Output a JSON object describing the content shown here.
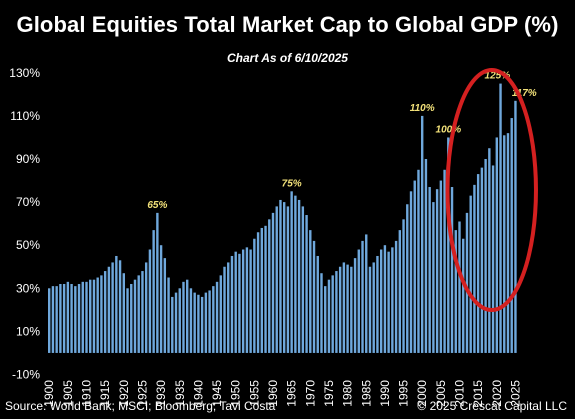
{
  "header": {
    "title": "Global Equities Total Market Cap to Global GDP (%)",
    "subtitle": "Chart As of 6/10/2025"
  },
  "footer": {
    "source": "Source: World Bank; MSCI; Bloomberg; Tavi Costa",
    "copyright": "© 2025 Crescat Capital LLC"
  },
  "colors": {
    "background": "#000000",
    "bar": "#6fa8dc",
    "annotation": "#f3e27a",
    "highlight_ellipse": "#d42020"
  },
  "chart_data": {
    "type": "bar",
    "title": "Global Equities Total Market Cap to Global GDP (%)",
    "subtitle": "Chart As of 6/10/2025",
    "xlabel": "",
    "ylabel": "",
    "ylim": [
      -10,
      130
    ],
    "yticks": [
      -10,
      10,
      30,
      50,
      70,
      90,
      110,
      130
    ],
    "ytick_labels": [
      "-10%",
      "10%",
      "30%",
      "50%",
      "70%",
      "90%",
      "110%",
      "130%"
    ],
    "xticks": [
      1900,
      1905,
      1910,
      1915,
      1920,
      1925,
      1930,
      1935,
      1940,
      1945,
      1950,
      1955,
      1960,
      1965,
      1970,
      1975,
      1980,
      1985,
      1990,
      1995,
      2000,
      2005,
      2010,
      2015,
      2020,
      2025
    ],
    "grid": false,
    "legend": "none",
    "annotations": [
      {
        "x": 1929,
        "label": "65%"
      },
      {
        "x": 1965,
        "label": "75%"
      },
      {
        "x": 2000,
        "label": "110%"
      },
      {
        "x": 2007,
        "label": "100%"
      },
      {
        "x": 2021,
        "label": "125%"
      },
      {
        "x": 2025,
        "label": "117%"
      }
    ],
    "highlight": {
      "shape": "ellipse",
      "x_range": [
        2013,
        2026
      ],
      "description_color": "#d42020"
    },
    "x": [
      1900.0,
      1901.0,
      1902.0,
      1903.0,
      1904.0,
      1905.0,
      1906.0,
      1907.0,
      1908.0,
      1909.0,
      1910.0,
      1911.0,
      1912.0,
      1913.0,
      1914.0,
      1915.0,
      1916.0,
      1917.0,
      1918.0,
      1919.0,
      1920.0,
      1921.0,
      1922.0,
      1923.0,
      1924.0,
      1925.0,
      1926.0,
      1927.0,
      1928.0,
      1929.0,
      1930.0,
      1931.0,
      1932.0,
      1933.0,
      1934.0,
      1935.0,
      1936.0,
      1937.0,
      1938.0,
      1939.0,
      1940.0,
      1941.0,
      1942.0,
      1943.0,
      1944.0,
      1945.0,
      1946.0,
      1947.0,
      1948.0,
      1949.0,
      1950.0,
      1951.0,
      1952.0,
      1953.0,
      1954.0,
      1955.0,
      1956.0,
      1957.0,
      1958.0,
      1959.0,
      1960.0,
      1961.0,
      1962.0,
      1963.0,
      1964.0,
      1965.0,
      1966.0,
      1967.0,
      1968.0,
      1969.0,
      1970.0,
      1971.0,
      1972.0,
      1973.0,
      1974.0,
      1975.0,
      1976.0,
      1977.0,
      1978.0,
      1979.0,
      1980.0,
      1981.0,
      1982.0,
      1983.0,
      1984.0,
      1985.0,
      1986.0,
      1987.0,
      1988.0,
      1989.0,
      1990.0,
      1991.0,
      1992.0,
      1993.0,
      1994.0,
      1995.0,
      1996.0,
      1997.0,
      1998.0,
      1999.0,
      2000.0,
      2001.0,
      2002.0,
      2003.0,
      2004.0,
      2005.0,
      2006.0,
      2007.0,
      2008.0,
      2009.0,
      2010.0,
      2011.0,
      2012.0,
      2013.0,
      2014.0,
      2015.0,
      2016.0,
      2017.0,
      2018.0,
      2019.0,
      2020.0,
      2021.0,
      2022.0,
      2023.0,
      2024.0,
      2025.0
    ],
    "values": [
      30,
      31,
      31,
      32,
      32,
      33,
      32,
      31,
      32,
      33,
      33,
      34,
      34,
      35,
      36,
      38,
      40,
      42,
      45,
      43,
      37,
      30,
      32,
      34,
      36,
      38,
      42,
      48,
      57,
      65,
      50,
      44,
      35,
      26,
      28,
      30,
      33,
      34,
      30,
      28,
      27,
      26,
      28,
      29,
      31,
      33,
      36,
      40,
      42,
      45,
      47,
      46,
      48,
      49,
      48,
      53,
      56,
      58,
      59,
      62,
      65,
      68,
      71,
      70,
      68,
      75,
      73,
      71,
      68,
      64,
      57,
      52,
      45,
      37,
      31,
      34,
      36,
      38,
      40,
      42,
      41,
      40,
      44,
      48,
      52,
      55,
      40,
      42,
      45,
      48,
      50,
      47,
      49,
      52,
      57,
      62,
      69,
      75,
      80,
      85,
      110,
      90,
      77,
      70,
      76,
      80,
      85,
      100,
      77,
      57,
      61,
      53,
      65,
      73,
      78,
      83,
      86,
      90,
      95,
      87,
      100,
      125,
      101,
      102,
      109,
      117
    ]
  }
}
